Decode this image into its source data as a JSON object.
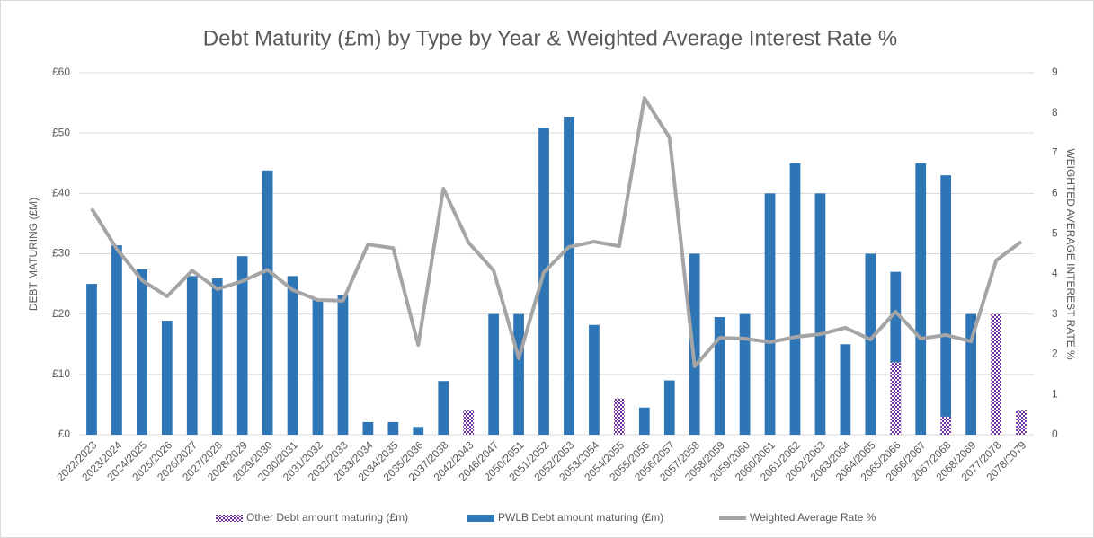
{
  "chart_data": {
    "type": "bar",
    "title": "Debt Maturity (£m) by Type by Year & Weighted Average Interest Rate %",
    "y_label": "DEBT MATURING (£M)",
    "y2_label": "WEIGHTED AVERAGE INTEREST RATE %",
    "categories": [
      "2022/2023",
      "2023/2024",
      "2024/2025",
      "2025/2026",
      "2026/2027",
      "2027/2028",
      "2028/2029",
      "2029/2030",
      "2030/2031",
      "2031/2032",
      "2032/2033",
      "2033/2034",
      "2034/2035",
      "2035/2036",
      "2037/2038",
      "2042/2043",
      "2046/2047",
      "2050/2051",
      "2051/2052",
      "2052/2053",
      "2053/2054",
      "2054/2055",
      "2055/2056",
      "2056/2057",
      "2057/2058",
      "2058/2059",
      "2059/2060",
      "2060/2061",
      "2061/2062",
      "2062/2063",
      "2063/2064",
      "2064/2065",
      "2065/2066",
      "2066/2067",
      "2067/2068",
      "2068/2069",
      "2077/2078",
      "2078/2079"
    ],
    "series": [
      {
        "name": "Other Debt amount maturing (£m)",
        "type": "bar",
        "color": "#7030a0",
        "values": [
          null,
          null,
          null,
          null,
          null,
          null,
          null,
          null,
          null,
          null,
          null,
          null,
          null,
          null,
          null,
          4,
          null,
          null,
          null,
          null,
          null,
          6,
          null,
          null,
          null,
          null,
          null,
          null,
          null,
          null,
          null,
          null,
          12,
          null,
          3,
          null,
          20,
          4
        ]
      },
      {
        "name": "PWLB Debt amount maturing (£m)",
        "type": "bar",
        "color": "#2e75b6",
        "values": [
          25,
          31.4,
          27.4,
          18.9,
          26.3,
          25.9,
          29.6,
          43.8,
          26.3,
          22.5,
          23.2,
          2.1,
          2.1,
          1.3,
          8.9,
          null,
          20,
          20,
          50.9,
          52.7,
          18.2,
          null,
          4.5,
          9,
          30,
          19.5,
          20,
          40,
          45,
          40,
          15,
          30,
          27,
          45,
          43,
          20,
          null,
          null
        ]
      },
      {
        "name": "Weighted Average Rate %",
        "type": "line",
        "axis": "y2",
        "color": "#a5a5a5",
        "values": [
          5.62,
          4.62,
          3.84,
          3.44,
          4.08,
          3.62,
          3.82,
          4.1,
          3.6,
          3.35,
          3.33,
          4.73,
          4.64,
          2.23,
          6.12,
          4.78,
          4.08,
          1.9,
          4.04,
          4.67,
          4.8,
          4.69,
          8.37,
          7.39,
          1.7,
          2.41,
          2.39,
          2.3,
          2.43,
          2.5,
          2.66,
          2.37,
          3.06,
          2.39,
          2.48,
          2.32,
          4.33,
          4.8
        ]
      }
    ],
    "ylim": [
      0,
      60
    ],
    "yticks": [
      {
        "value": 0,
        "label": "£0"
      },
      {
        "value": 10,
        "label": "£10"
      },
      {
        "value": 20,
        "label": "£20"
      },
      {
        "value": 30,
        "label": "£30"
      },
      {
        "value": 40,
        "label": "£40"
      },
      {
        "value": 50,
        "label": "£50"
      },
      {
        "value": 60,
        "label": "£60"
      }
    ],
    "y2lim": [
      0,
      9
    ],
    "y2ticks": [
      0,
      1,
      2,
      3,
      4,
      5,
      6,
      7,
      8,
      9
    ],
    "grid": true,
    "legend": "bottom"
  }
}
